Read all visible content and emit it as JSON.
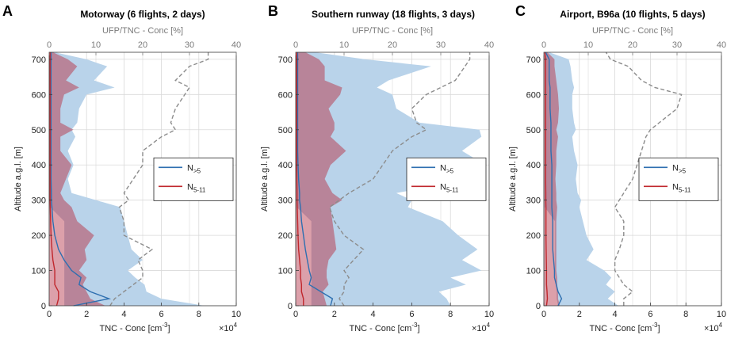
{
  "figure": {
    "type": "three-panel vertical profile line/area chart"
  },
  "chart_data": [
    {
      "type": "line",
      "panel_letter": "A",
      "title": "Motorway (6 flights, 2 days)",
      "xlabel": "TNC - Conc [cm",
      "xlabel_sup": "-3",
      "xlabel_end": "]",
      "x_multiplier": "×10",
      "x_multiplier_exp": "4",
      "ylabel": "Altitude a.g.l. [m]",
      "top_xlabel": "UFP/TNC - Conc [%]",
      "xlim": [
        0,
        10
      ],
      "xticks": [
        "0",
        "2",
        "4",
        "6",
        "8",
        "10"
      ],
      "top_xlim": [
        0,
        40
      ],
      "top_xticks": [
        "0",
        "10",
        "20",
        "30",
        "40"
      ],
      "ylim": [
        0,
        720
      ],
      "yticks": [
        "0",
        "100",
        "200",
        "300",
        "400",
        "500",
        "600",
        "700"
      ],
      "grid": true,
      "legend_position": "middle-right",
      "legend": [
        {
          "main": "N",
          "sub": ">5",
          "color": "#2e6fb0"
        },
        {
          "main": "N",
          "sub": "5-11",
          "color": "#c0272d"
        }
      ],
      "series": {
        "alt": [
          0,
          20,
          40,
          60,
          80,
          100,
          130,
          160,
          200,
          240,
          280,
          300,
          320,
          360,
          400,
          440,
          480,
          500,
          520,
          560,
          600,
          620,
          640,
          680,
          700,
          720
        ],
        "n5_mean": [
          1.3,
          3.2,
          2.2,
          1.6,
          1.7,
          1.2,
          0.8,
          0.5,
          0.3,
          0.2,
          0.15,
          0.12,
          0.12,
          0.1,
          0.1,
          0.1,
          0.1,
          0.1,
          0.1,
          0.1,
          0.1,
          0.1,
          0.1,
          0.1,
          0.1,
          0.1
        ],
        "n5_upper": [
          8.3,
          6.0,
          5.2,
          5.1,
          4.6,
          4.2,
          5.0,
          4.4,
          4.2,
          4.0,
          3.8,
          2.5,
          1.2,
          1.0,
          1.3,
          1.0,
          1.4,
          1.2,
          1.5,
          1.6,
          2.0,
          3.5,
          2.4,
          3.1,
          2.0,
          0.3
        ],
        "n511_mean": [
          0.4,
          0.5,
          0.5,
          0.3,
          0.3,
          0.3,
          0.2,
          0.15,
          0.1,
          0.08,
          0.06,
          0.05,
          0.05,
          0.05,
          0.05,
          0.05,
          0.05,
          0.05,
          0.05,
          0.05,
          0.05,
          0.05,
          0.05,
          0.05,
          0.05,
          0.05
        ],
        "n511_upper": [
          3.0,
          2.2,
          2.0,
          1.8,
          2.0,
          1.6,
          2.0,
          1.9,
          2.4,
          1.5,
          1.2,
          0.8,
          0.6,
          0.9,
          1.2,
          0.6,
          0.6,
          1.3,
          0.6,
          0.6,
          0.8,
          1.6,
          0.9,
          1.5,
          1.0,
          0.2
        ],
        "ratio_pct": [
          13,
          14,
          16,
          18,
          20,
          20,
          19,
          22,
          16,
          16,
          15,
          17,
          16,
          18,
          20,
          20,
          24,
          27,
          26,
          27,
          29,
          30,
          27,
          30,
          34,
          34
        ]
      }
    },
    {
      "type": "line",
      "panel_letter": "B",
      "title": "Southern runway (18 flights, 3 days)",
      "xlabel": "TNC - Conc [cm",
      "xlabel_sup": "-3",
      "xlabel_end": "]",
      "x_multiplier": "×10",
      "x_multiplier_exp": "4",
      "ylabel": "Altitude a.g.l. [m]",
      "top_xlabel": "UFP/TNC - Conc [%]",
      "xlim": [
        0,
        10
      ],
      "xticks": [
        "0",
        "2",
        "4",
        "6",
        "8",
        "10"
      ],
      "top_xlim": [
        0,
        40
      ],
      "top_xticks": [
        "0",
        "10",
        "20",
        "30",
        "40"
      ],
      "ylim": [
        0,
        720
      ],
      "yticks": [
        "0",
        "100",
        "200",
        "300",
        "400",
        "500",
        "600",
        "700"
      ],
      "grid": true,
      "legend_position": "middle-right",
      "legend": [
        {
          "main": "N",
          "sub": ">5",
          "color": "#2e6fb0"
        },
        {
          "main": "N",
          "sub": "5-11",
          "color": "#c0272d"
        }
      ],
      "series": {
        "alt": [
          0,
          20,
          40,
          60,
          80,
          100,
          130,
          160,
          200,
          240,
          280,
          300,
          320,
          360,
          400,
          440,
          480,
          500,
          520,
          560,
          600,
          620,
          640,
          680,
          700,
          720
        ],
        "n5_mean": [
          1.8,
          1.9,
          1.3,
          0.7,
          0.8,
          0.7,
          0.6,
          0.5,
          0.4,
          0.3,
          0.25,
          0.2,
          0.2,
          0.15,
          0.12,
          0.1,
          0.1,
          0.1,
          0.1,
          0.1,
          0.1,
          0.1,
          0.1,
          0.1,
          0.1,
          0.1
        ],
        "n5_upper": [
          8.0,
          7.8,
          7.4,
          8.8,
          8.0,
          9.6,
          8.6,
          9.4,
          8.4,
          7.6,
          5.8,
          6.0,
          5.2,
          9.0,
          9.8,
          8.6,
          9.6,
          9.5,
          6.4,
          5.2,
          5.0,
          4.2,
          4.8,
          7.0,
          3.6,
          1.0
        ],
        "n511_mean": [
          0.4,
          0.4,
          0.3,
          0.3,
          0.25,
          0.25,
          0.2,
          0.15,
          0.12,
          0.1,
          0.08,
          0.07,
          0.07,
          0.06,
          0.05,
          0.05,
          0.05,
          0.05,
          0.05,
          0.05,
          0.05,
          0.05,
          0.05,
          0.05,
          0.05,
          0.05
        ],
        "n511_upper": [
          1.6,
          1.5,
          1.4,
          1.7,
          1.6,
          1.6,
          1.7,
          2.1,
          2.0,
          1.9,
          1.8,
          2.4,
          1.9,
          1.5,
          1.8,
          2.6,
          1.8,
          2.0,
          2.0,
          1.7,
          2.3,
          2.4,
          1.5,
          1.5,
          1.2,
          0.5
        ],
        "ratio_pct": [
          10,
          9,
          10,
          10,
          11,
          10,
          12,
          14,
          10,
          8,
          7,
          9,
          11,
          16,
          18,
          20,
          24,
          27,
          25,
          24,
          27,
          30,
          33,
          35,
          36,
          36
        ]
      }
    },
    {
      "type": "line",
      "panel_letter": "C",
      "title": "Airport, B96a (10 flights, 5 days)",
      "xlabel": "TNC - Conc [cm",
      "xlabel_sup": "-3",
      "xlabel_end": "]",
      "x_multiplier": "×10",
      "x_multiplier_exp": "4",
      "ylabel": "Altitude a.g.l. [m]",
      "top_xlabel": "UFP/TNC - Conc [%]",
      "xlim": [
        0,
        10
      ],
      "xticks": [
        "0",
        "2",
        "4",
        "6",
        "8",
        "10"
      ],
      "top_xlim": [
        0,
        40
      ],
      "top_xticks": [
        "0",
        "10",
        "20",
        "30",
        "40"
      ],
      "ylim": [
        0,
        720
      ],
      "yticks": [
        "0",
        "100",
        "200",
        "300",
        "400",
        "500",
        "600",
        "700"
      ],
      "grid": true,
      "legend_position": "middle-right",
      "legend": [
        {
          "main": "N",
          "sub": ">5",
          "color": "#2e6fb0"
        },
        {
          "main": "N",
          "sub": "5-11",
          "color": "#c0272d"
        }
      ],
      "series": {
        "alt": [
          0,
          20,
          40,
          60,
          80,
          100,
          130,
          160,
          200,
          240,
          280,
          300,
          320,
          360,
          400,
          440,
          480,
          500,
          520,
          560,
          600,
          620,
          640,
          680,
          700,
          720
        ],
        "n5_mean": [
          0.8,
          1.0,
          0.8,
          0.7,
          0.6,
          0.6,
          0.55,
          0.5,
          0.5,
          0.5,
          0.45,
          0.45,
          0.45,
          0.45,
          0.45,
          0.4,
          0.4,
          0.4,
          0.4,
          0.35,
          0.35,
          0.35,
          0.3,
          0.3,
          0.3,
          0.1
        ],
        "n5_upper": [
          4.2,
          3.6,
          4.0,
          3.5,
          3.8,
          3.4,
          2.4,
          2.8,
          2.4,
          2.2,
          2.0,
          2.1,
          1.9,
          1.8,
          1.9,
          1.7,
          1.6,
          1.8,
          1.7,
          1.6,
          1.6,
          1.7,
          1.6,
          1.5,
          1.4,
          0.3
        ],
        "n511_mean": [
          0.15,
          0.2,
          0.18,
          0.15,
          0.15,
          0.15,
          0.14,
          0.13,
          0.12,
          0.12,
          0.12,
          0.11,
          0.11,
          0.1,
          0.1,
          0.1,
          0.1,
          0.1,
          0.1,
          0.1,
          0.1,
          0.1,
          0.1,
          0.1,
          0.1,
          0.05
        ],
        "n511_upper": [
          0.9,
          0.8,
          0.8,
          0.75,
          0.75,
          0.7,
          0.7,
          0.7,
          0.7,
          0.7,
          0.75,
          0.7,
          0.7,
          0.65,
          0.7,
          0.7,
          0.8,
          0.7,
          0.8,
          0.85,
          0.8,
          0.75,
          0.7,
          0.6,
          0.6,
          0.2
        ],
        "ratio_pct": [
          18,
          18,
          20,
          18,
          17,
          16,
          16,
          17,
          18,
          18,
          16,
          17,
          18,
          20,
          21,
          22,
          23,
          24,
          26,
          30,
          31,
          25,
          22,
          19,
          15,
          14
        ]
      }
    }
  ]
}
